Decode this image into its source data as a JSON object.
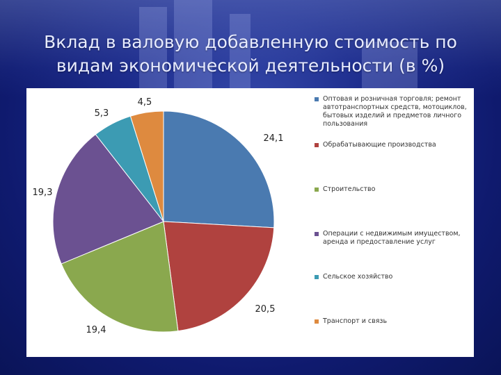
{
  "slide": {
    "title": "Вклад в валовую добавленную стоимость по видам экономической деятельности (в %)"
  },
  "chart_data": {
    "type": "pie",
    "title": "",
    "start_angle_deg": 90,
    "direction": "clockwise",
    "slices": [
      {
        "label": "Оптовая и розничная торговля; ремонт автотранспортных средств, мотоциклов, бытовых изделий и предметов личного пользования",
        "value": 24.1,
        "value_label": "24,1",
        "color": "#4a7ab0"
      },
      {
        "label": "Обрабатывающие производства",
        "value": 20.5,
        "value_label": "20,5",
        "color": "#b0423f"
      },
      {
        "label": "Строительство",
        "value": 19.4,
        "value_label": "19,4",
        "color": "#8aa84e"
      },
      {
        "label": "Операции с недвижимым имуществом, аренда и предоставление услуг",
        "value": 19.3,
        "value_label": "19,3",
        "color": "#6b5191"
      },
      {
        "label": "Сельское хозяйство",
        "value": 5.3,
        "value_label": "5,3",
        "color": "#3c9bb3"
      },
      {
        "label": "Транспорт и связь",
        "value": 4.5,
        "value_label": "4,5",
        "color": "#de8a3f"
      }
    ],
    "legend_position": "right"
  }
}
